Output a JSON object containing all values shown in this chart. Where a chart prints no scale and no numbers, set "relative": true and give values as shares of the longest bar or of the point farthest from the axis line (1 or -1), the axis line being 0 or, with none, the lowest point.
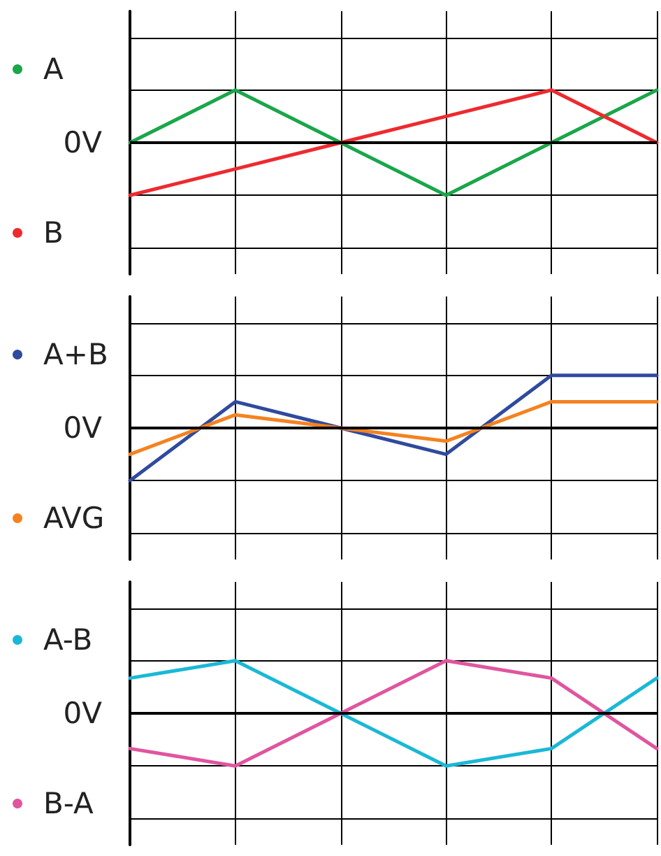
{
  "chart_data": [
    {
      "type": "line",
      "relative": true,
      "categories": [
        null,
        null,
        null,
        null,
        null,
        null
      ],
      "grid": true,
      "legend": "left",
      "marker": "none",
      "line_style": "solid",
      "ref_lines": [
        {
          "axis": "y",
          "value": 0,
          "label": "0V",
          "color": "#000000"
        }
      ],
      "series": [
        {
          "name": "A",
          "color": "#1aa64a",
          "values": [
            0,
            1,
            0,
            -1,
            0,
            1
          ]
        },
        {
          "name": "B",
          "color": "#ee2a2f",
          "values": [
            -1,
            -0.5,
            0,
            0.5,
            1,
            0
          ]
        }
      ]
    },
    {
      "type": "line",
      "relative": true,
      "categories": [
        null,
        null,
        null,
        null,
        null,
        null
      ],
      "grid": true,
      "legend": "left",
      "marker": "none",
      "line_style": "solid",
      "ref_lines": [
        {
          "axis": "y",
          "value": 0,
          "label": "0V",
          "color": "#000000"
        }
      ],
      "series": [
        {
          "name": "A+B",
          "color": "#2f4a9e",
          "values": [
            -1,
            0.5,
            0,
            -0.5,
            1,
            1
          ]
        },
        {
          "name": "AVG",
          "color": "#f58220",
          "values": [
            -0.5,
            0.25,
            0,
            -0.25,
            0.5,
            0.5
          ]
        }
      ]
    },
    {
      "type": "line",
      "relative": true,
      "categories": [
        null,
        null,
        null,
        null,
        null,
        null
      ],
      "grid": true,
      "legend": "left",
      "marker": "none",
      "line_style": "solid",
      "ref_lines": [
        {
          "axis": "y",
          "value": 0,
          "label": "0V",
          "color": "#000000"
        }
      ],
      "series": [
        {
          "name": "A-B",
          "color": "#1ab8d6",
          "values": [
            0.67,
            1,
            0,
            -1,
            -0.67,
            0.67
          ]
        },
        {
          "name": "B-A",
          "color": "#e0559e",
          "values": [
            -0.67,
            -1,
            0,
            1,
            0.67,
            -0.67
          ]
        }
      ]
    }
  ]
}
